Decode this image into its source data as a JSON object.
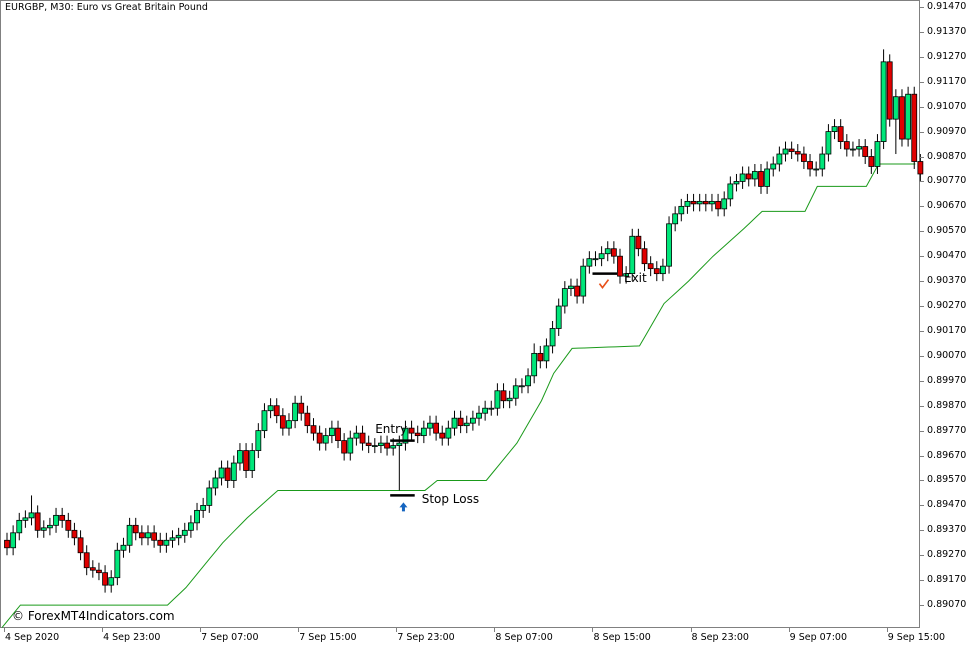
{
  "title": "EURGBP, M30:  Euro vs Great Britain Pound",
  "watermark": "© ForexMT4Indicators.com",
  "colors": {
    "bull": "#00e67a",
    "bear": "#e00000",
    "wick": "#000000",
    "stop_line": "#1a9a1a",
    "arrow": "#1565c0",
    "check": "#e8501a"
  },
  "chart_data": {
    "type": "candlestick",
    "title": "EURGBP, M30:  Euro vs Great Britain Pound",
    "ylim": [
      0.8898,
      0.915
    ],
    "yticks": [
      "0.91470",
      "0.91370",
      "0.91270",
      "0.91170",
      "0.91070",
      "0.90970",
      "0.90870",
      "0.90770",
      "0.90670",
      "0.90570",
      "0.90470",
      "0.90370",
      "0.90270",
      "0.90170",
      "0.90070",
      "0.89970",
      "0.89870",
      "0.89770",
      "0.89670",
      "0.89570",
      "0.89470",
      "0.89370",
      "0.89270",
      "0.89170",
      "0.89070"
    ],
    "xticks": [
      {
        "bar": 0,
        "label": "4 Sep 2020"
      },
      {
        "bar": 16,
        "label": "4 Sep 23:00"
      },
      {
        "bar": 32,
        "label": "7 Sep 07:00"
      },
      {
        "bar": 48,
        "label": "7 Sep 15:00"
      },
      {
        "bar": 64,
        "label": "7 Sep 23:00"
      },
      {
        "bar": 80,
        "label": "8 Sep 07:00"
      },
      {
        "bar": 96,
        "label": "8 Sep 15:00"
      },
      {
        "bar": 112,
        "label": "8 Sep 23:00"
      },
      {
        "bar": 128,
        "label": "9 Sep 07:00"
      },
      {
        "bar": 144,
        "label": "9 Sep 15:00"
      }
    ],
    "first_open": 0.8933,
    "close": [
      0.893,
      0.8936,
      0.8941,
      0.8942,
      0.8944,
      0.8937,
      0.8938,
      0.8939,
      0.8943,
      0.8941,
      0.8937,
      0.8934,
      0.8928,
      0.8922,
      0.8921,
      0.892,
      0.8915,
      0.8918,
      0.8929,
      0.8931,
      0.8939,
      0.8936,
      0.8934,
      0.8936,
      0.8933,
      0.8931,
      0.8933,
      0.8934,
      0.8935,
      0.8937,
      0.894,
      0.8945,
      0.8947,
      0.8954,
      0.8958,
      0.8962,
      0.8957,
      0.8964,
      0.8969,
      0.8961,
      0.8969,
      0.8977,
      0.8985,
      0.8987,
      0.8983,
      0.8978,
      0.8981,
      0.8988,
      0.8984,
      0.8979,
      0.8976,
      0.8972,
      0.8975,
      0.8978,
      0.8973,
      0.8968,
      0.8974,
      0.8976,
      0.8972,
      0.8971,
      0.8971,
      0.8972,
      0.897,
      0.8971,
      0.8972,
      0.8978,
      0.8976,
      0.8975,
      0.8978,
      0.898,
      0.8976,
      0.8974,
      0.8978,
      0.8982,
      0.8979,
      0.898,
      0.8982,
      0.8984,
      0.8986,
      0.8986,
      0.8993,
      0.8989,
      0.899,
      0.8995,
      0.8995,
      0.8999,
      0.9008,
      0.9005,
      0.9011,
      0.9018,
      0.9027,
      0.9034,
      0.9035,
      0.9031,
      0.9043,
      0.9046,
      0.9046,
      0.9048,
      0.905,
      0.9047,
      0.9039,
      0.904,
      0.9055,
      0.905,
      0.9044,
      0.9042,
      0.904,
      0.9043,
      0.906,
      0.9064,
      0.9067,
      0.9069,
      0.9068,
      0.9069,
      0.9068,
      0.9069,
      0.9066,
      0.907,
      0.9076,
      0.9077,
      0.908,
      0.9078,
      0.9081,
      0.9075,
      0.9082,
      0.9084,
      0.9088,
      0.909,
      0.9089,
      0.9088,
      0.9085,
      0.9082,
      0.9082,
      0.9088,
      0.9097,
      0.9099,
      0.9093,
      0.909,
      0.909,
      0.9091,
      0.9087,
      0.9083,
      0.9093,
      0.9125,
      0.9102,
      0.9111,
      0.9094,
      0.9112,
      0.9085,
      0.908
    ],
    "wick": 0.0003,
    "wick_overrides": {
      "4": {
        "h": 0.8951
      },
      "64": {
        "l": 0.8953
      },
      "86": {
        "h": 0.9012
      },
      "143": {
        "h": 0.913
      },
      "144": {
        "h": 0.9128
      },
      "145": {
        "l": 0.9088
      }
    },
    "stop_line": [
      [
        0,
        0.8898
      ],
      [
        3,
        0.8907
      ],
      [
        27,
        0.8907
      ],
      [
        30,
        0.8914
      ],
      [
        36,
        0.8932
      ],
      [
        40,
        0.8942
      ],
      [
        45,
        0.8953
      ],
      [
        69,
        0.8953
      ],
      [
        71,
        0.8957
      ],
      [
        79,
        0.8957
      ],
      [
        84,
        0.8972
      ],
      [
        88,
        0.8989
      ],
      [
        90,
        0.9
      ],
      [
        93,
        0.901
      ],
      [
        104,
        0.9011
      ],
      [
        108,
        0.9028
      ],
      [
        112,
        0.9037
      ],
      [
        116,
        0.9047
      ],
      [
        121,
        0.9058
      ],
      [
        124,
        0.9065
      ],
      [
        131,
        0.9065
      ],
      [
        133,
        0.9075
      ],
      [
        141,
        0.9075
      ],
      [
        143,
        0.9084
      ],
      [
        149,
        0.9084
      ]
    ],
    "annotations": {
      "entry": {
        "label": "Entry",
        "price": 0.8973,
        "bar_from": 63,
        "bar_to": 67
      },
      "stop_loss": {
        "label": "Stop Loss",
        "price": 0.8951,
        "bar_from": 63,
        "bar_to": 67
      },
      "exit": {
        "label": "Exit",
        "price": 0.904,
        "bar_from": 96,
        "bar_to": 100
      },
      "buy_arrow_bar": 65
    }
  }
}
